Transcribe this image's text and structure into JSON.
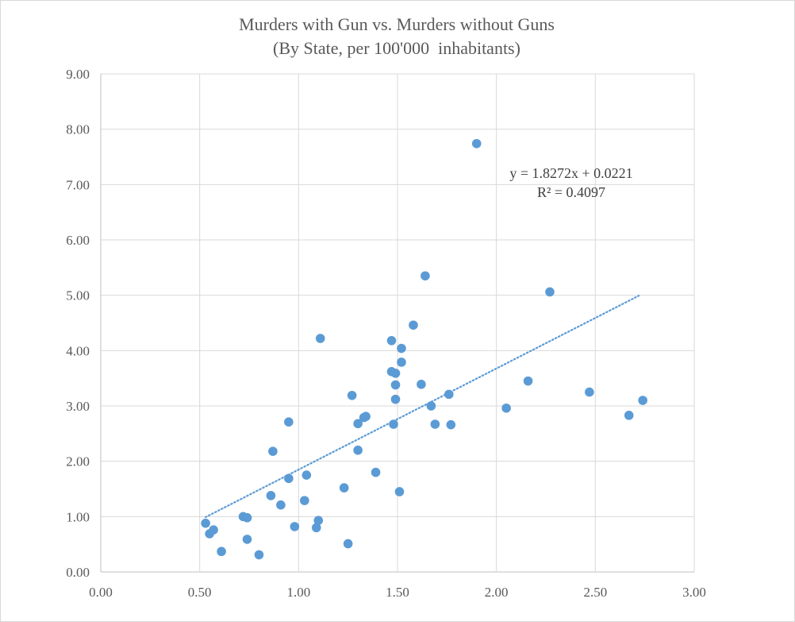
{
  "chart_data": {
    "type": "scatter",
    "title": "Murders with Gun vs. Murders without Guns",
    "subtitle": "(By State, per 100'000  inhabitants)",
    "xlabel": "",
    "ylabel": "",
    "xlim": [
      0,
      3
    ],
    "ylim": [
      0,
      9
    ],
    "x_ticks": [
      "0.00",
      "0.50",
      "1.00",
      "1.50",
      "2.00",
      "2.50",
      "3.00"
    ],
    "y_ticks": [
      "0.00",
      "1.00",
      "2.00",
      "3.00",
      "4.00",
      "5.00",
      "6.00",
      "7.00",
      "8.00",
      "9.00"
    ],
    "grid": true,
    "marker_color": "#5B9BD5",
    "trendline_color": "#5B9BD5",
    "points": [
      {
        "x": 0.53,
        "y": 0.88
      },
      {
        "x": 0.55,
        "y": 0.69
      },
      {
        "x": 0.57,
        "y": 0.76
      },
      {
        "x": 0.61,
        "y": 0.37
      },
      {
        "x": 0.72,
        "y": 1.0
      },
      {
        "x": 0.74,
        "y": 0.98
      },
      {
        "x": 0.74,
        "y": 0.59
      },
      {
        "x": 0.8,
        "y": 0.31
      },
      {
        "x": 0.86,
        "y": 1.38
      },
      {
        "x": 0.87,
        "y": 2.18
      },
      {
        "x": 0.91,
        "y": 1.21
      },
      {
        "x": 0.95,
        "y": 1.69
      },
      {
        "x": 0.95,
        "y": 2.71
      },
      {
        "x": 0.98,
        "y": 0.82
      },
      {
        "x": 1.03,
        "y": 1.29
      },
      {
        "x": 1.04,
        "y": 1.75
      },
      {
        "x": 1.09,
        "y": 0.8
      },
      {
        "x": 1.1,
        "y": 0.93
      },
      {
        "x": 1.11,
        "y": 4.22
      },
      {
        "x": 1.23,
        "y": 1.52
      },
      {
        "x": 1.25,
        "y": 0.51
      },
      {
        "x": 1.27,
        "y": 3.19
      },
      {
        "x": 1.3,
        "y": 2.68
      },
      {
        "x": 1.3,
        "y": 2.2
      },
      {
        "x": 1.33,
        "y": 2.79
      },
      {
        "x": 1.34,
        "y": 2.81
      },
      {
        "x": 1.39,
        "y": 1.8
      },
      {
        "x": 1.47,
        "y": 4.18
      },
      {
        "x": 1.47,
        "y": 3.62
      },
      {
        "x": 1.48,
        "y": 2.67
      },
      {
        "x": 1.49,
        "y": 3.59
      },
      {
        "x": 1.49,
        "y": 3.38
      },
      {
        "x": 1.49,
        "y": 3.12
      },
      {
        "x": 1.51,
        "y": 1.45
      },
      {
        "x": 1.52,
        "y": 4.04
      },
      {
        "x": 1.52,
        "y": 3.79
      },
      {
        "x": 1.58,
        "y": 4.46
      },
      {
        "x": 1.62,
        "y": 3.39
      },
      {
        "x": 1.64,
        "y": 5.35
      },
      {
        "x": 1.67,
        "y": 3.0
      },
      {
        "x": 1.69,
        "y": 2.67
      },
      {
        "x": 1.76,
        "y": 3.21
      },
      {
        "x": 1.77,
        "y": 2.66
      },
      {
        "x": 1.9,
        "y": 7.74
      },
      {
        "x": 2.05,
        "y": 2.96
      },
      {
        "x": 2.16,
        "y": 3.45
      },
      {
        "x": 2.27,
        "y": 5.06
      },
      {
        "x": 2.47,
        "y": 3.25
      },
      {
        "x": 2.67,
        "y": 2.83
      },
      {
        "x": 2.74,
        "y": 3.1
      }
    ],
    "trendline": {
      "type": "linear",
      "slope": 1.8272,
      "intercept": 0.0221,
      "x_range": [
        0.53,
        2.72
      ],
      "equation_label": "y = 1.8272x + 0.0221",
      "r2_label": "R² = 0.4097"
    }
  }
}
